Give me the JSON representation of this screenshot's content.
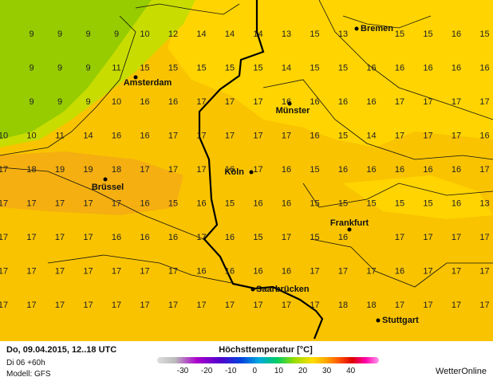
{
  "map": {
    "grid": [
      [
        null,
        9,
        9,
        9,
        9,
        10,
        12,
        14,
        14,
        14,
        13,
        15,
        13,
        null,
        15,
        15,
        16,
        15
      ],
      [
        null,
        9,
        9,
        9,
        11,
        15,
        15,
        15,
        15,
        15,
        14,
        15,
        15,
        16,
        16,
        16,
        16,
        16
      ],
      [
        null,
        9,
        9,
        9,
        10,
        16,
        16,
        17,
        17,
        17,
        16,
        16,
        16,
        16,
        17,
        17,
        17,
        17
      ],
      [
        10,
        10,
        11,
        14,
        16,
        16,
        17,
        17,
        17,
        17,
        17,
        16,
        15,
        14,
        17,
        17,
        17,
        16
      ],
      [
        17,
        18,
        19,
        19,
        18,
        17,
        17,
        17,
        16,
        17,
        16,
        15,
        16,
        16,
        16,
        16,
        16,
        17
      ],
      [
        17,
        17,
        17,
        17,
        17,
        16,
        15,
        16,
        15,
        16,
        16,
        15,
        15,
        15,
        15,
        15,
        16,
        13
      ],
      [
        17,
        17,
        17,
        17,
        16,
        16,
        16,
        17,
        16,
        15,
        17,
        15,
        16,
        null,
        17,
        17,
        17,
        17
      ],
      [
        17,
        17,
        17,
        17,
        17,
        17,
        17,
        16,
        16,
        16,
        16,
        17,
        17,
        17,
        16,
        17,
        17,
        17
      ],
      [
        17,
        17,
        17,
        17,
        17,
        17,
        17,
        17,
        17,
        17,
        17,
        17,
        18,
        18,
        17,
        17,
        17,
        17
      ]
    ],
    "cities": [
      "Bremen",
      "Amsterdam",
      "Münster",
      "Köln",
      "Brüssel",
      "Frankfurt",
      "Saarbrücken",
      "Stuttgart"
    ]
  },
  "footer": {
    "date": "Do, 09.04.2015, 12..18 UTC",
    "run": "Di 06 +60h",
    "model": "Modell: GFS",
    "title": "Höchsttemperatur [°C]",
    "legend_ticks": [
      -30,
      -20,
      -10,
      0,
      10,
      20,
      30,
      40
    ],
    "brand": "WetterOnline"
  }
}
